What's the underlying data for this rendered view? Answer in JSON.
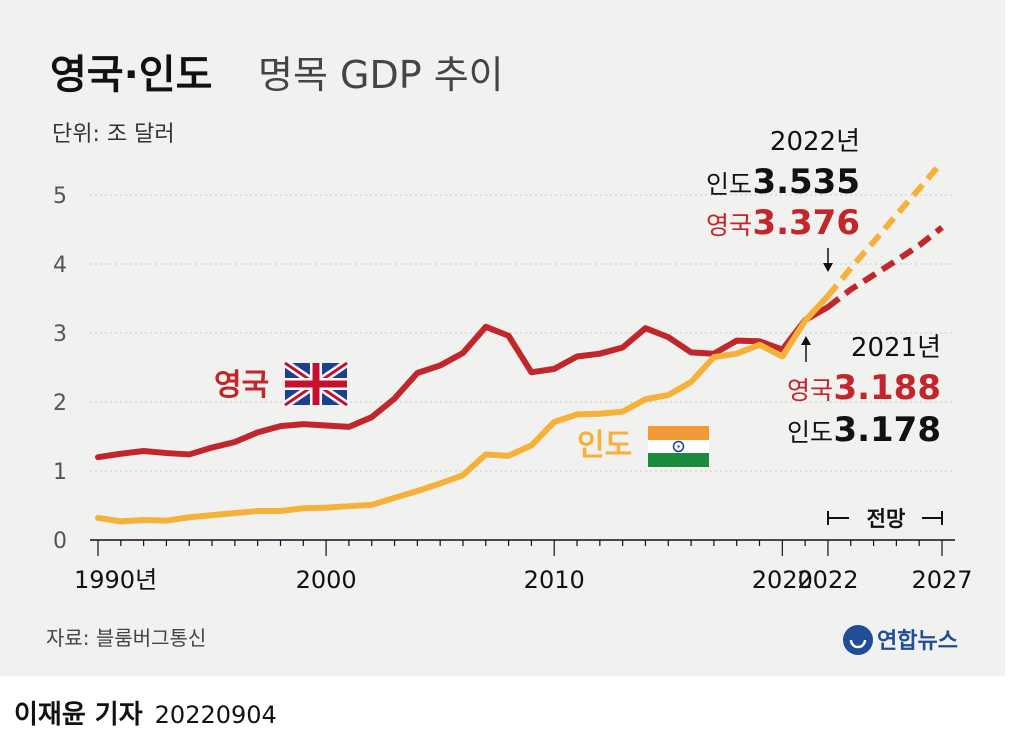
{
  "title_bold": "영국·인도",
  "title_light": "명목 GDP 추이",
  "unit": "단위: 조 달러",
  "source": "자료: 블룸버그통신",
  "logo": "연합뉴스",
  "byline": {
    "author": "이재윤 기자",
    "date": "20220904"
  },
  "colors": {
    "uk": "#c1262b",
    "india": "#f6b13a",
    "panel": "#f1f1f0"
  },
  "flags": {
    "uk": "uk-flag-icon",
    "india": "india-flag-icon"
  },
  "forecast_label": "전망",
  "annotations": {
    "y2022": {
      "year": "2022년",
      "india_label": "인도",
      "india_value": "3.535",
      "uk_label": "영국",
      "uk_value": "3.376"
    },
    "y2021": {
      "year": "2021년",
      "uk_label": "영국",
      "uk_value": "3.188",
      "india_label": "인도",
      "india_value": "3.178"
    }
  },
  "chart_data": {
    "type": "line",
    "title": "영국·인도 명목 GDP 추이",
    "ylabel": "단위: 조 달러",
    "ylim": [
      0,
      5.7
    ],
    "yticks": [
      "0",
      "1",
      "2",
      "3",
      "4",
      "5"
    ],
    "xticks": [
      "1990년",
      "2000",
      "2010",
      "2020",
      "2022",
      "2027"
    ],
    "xtick_years": [
      1990,
      2000,
      2010,
      2020,
      2022,
      2027
    ],
    "forecast_range": [
      2022,
      2027
    ],
    "series": [
      {
        "name": "영국",
        "key": "uk",
        "x": [
          1990,
          1991,
          1992,
          1993,
          1994,
          1995,
          1996,
          1997,
          1998,
          1999,
          2000,
          2001,
          2002,
          2003,
          2004,
          2005,
          2006,
          2007,
          2008,
          2009,
          2010,
          2011,
          2012,
          2013,
          2014,
          2015,
          2016,
          2017,
          2018,
          2019,
          2020,
          2021,
          2022
        ],
        "values": [
          1.2,
          1.25,
          1.29,
          1.26,
          1.24,
          1.34,
          1.42,
          1.56,
          1.65,
          1.68,
          1.66,
          1.64,
          1.78,
          2.05,
          2.42,
          2.53,
          2.71,
          3.09,
          2.96,
          2.43,
          2.48,
          2.66,
          2.7,
          2.79,
          3.07,
          2.94,
          2.72,
          2.7,
          2.89,
          2.88,
          2.76,
          3.188,
          3.376
        ],
        "forecast_x": [
          2022,
          2023,
          2024,
          2025,
          2026,
          2027
        ],
        "forecast_values": [
          3.376,
          3.63,
          3.84,
          4.05,
          4.27,
          4.53
        ]
      },
      {
        "name": "인도",
        "key": "india",
        "x": [
          1990,
          1991,
          1992,
          1993,
          1994,
          1995,
          1996,
          1997,
          1998,
          1999,
          2000,
          2001,
          2002,
          2003,
          2004,
          2005,
          2006,
          2007,
          2008,
          2009,
          2010,
          2011,
          2012,
          2013,
          2014,
          2015,
          2016,
          2017,
          2018,
          2019,
          2020,
          2021,
          2022
        ],
        "values": [
          0.32,
          0.27,
          0.29,
          0.28,
          0.33,
          0.36,
          0.39,
          0.42,
          0.42,
          0.46,
          0.47,
          0.49,
          0.51,
          0.61,
          0.71,
          0.82,
          0.94,
          1.24,
          1.22,
          1.37,
          1.71,
          1.82,
          1.83,
          1.86,
          2.04,
          2.1,
          2.29,
          2.65,
          2.7,
          2.83,
          2.66,
          3.178,
          3.535
        ],
        "forecast_x": [
          2022,
          2023,
          2024,
          2025,
          2026,
          2027
        ],
        "forecast_values": [
          3.535,
          3.94,
          4.32,
          4.71,
          5.09,
          5.48
        ]
      }
    ]
  }
}
